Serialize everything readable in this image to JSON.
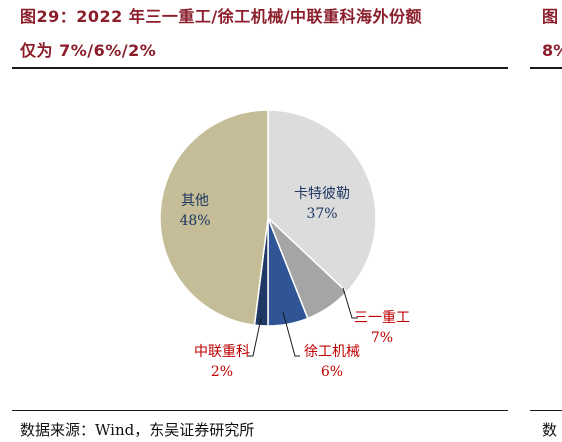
{
  "figure": {
    "title_line1": "图29：2022 年三一重工/徐工机械/中联重科海外份额",
    "title_line2": "仅为 7%/6%/2%",
    "side_title_line1": "图",
    "side_title_line2": "8%",
    "source": "数据来源：Wind，东吴证券研究所",
    "side_source": "数"
  },
  "chart_data": {
    "type": "pie",
    "slices": [
      {
        "name": "卡特彼勒",
        "value": 37,
        "label": "37%",
        "color": "#dcdcdc",
        "label_color": "#1f3864"
      },
      {
        "name": "三一重工",
        "value": 7,
        "label": "7%",
        "color": "#a5a5a5",
        "label_color": "#c00000"
      },
      {
        "name": "徐工机械",
        "value": 6,
        "label": "6%",
        "color": "#2f5597",
        "label_color": "#c00000"
      },
      {
        "name": "中联重科",
        "value": 2,
        "label": "2%",
        "color": "#1f3864",
        "label_color": "#c00000"
      },
      {
        "name": "其他",
        "value": 48,
        "label": "48%",
        "color": "#c4bd97",
        "label_color": "#1f3864"
      }
    ],
    "start_angle": "12 o'clock",
    "direction": "clockwise",
    "legend": "none"
  }
}
